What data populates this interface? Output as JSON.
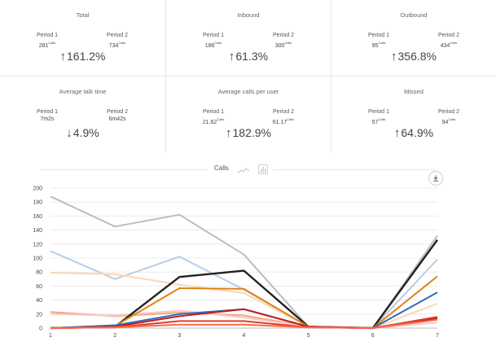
{
  "stats": [
    {
      "title": "Total",
      "p1_label": "Period 1",
      "p1_value": "281",
      "p1_unit": "Calls",
      "p2_label": "Period 2",
      "p2_value": "734",
      "p2_unit": "Calls",
      "change": "161.2%",
      "dir": "up"
    },
    {
      "title": "Inbound",
      "p1_label": "Period 1",
      "p1_value": "186",
      "p1_unit": "Calls",
      "p2_label": "Period 2",
      "p2_value": "300",
      "p2_unit": "Calls",
      "change": "61.3%",
      "dir": "up"
    },
    {
      "title": "Outbound",
      "p1_label": "Period 1",
      "p1_value": "95",
      "p1_unit": "Calls",
      "p2_label": "Period 2",
      "p2_value": "434",
      "p2_unit": "Calls",
      "change": "356.8%",
      "dir": "up"
    },
    {
      "title": "Average talk time",
      "p1_label": "Period 1",
      "p1_value": "7m2s",
      "p1_unit": "",
      "p2_label": "Period 2",
      "p2_value": "6m42s",
      "p2_unit": "",
      "change": "4.9%",
      "dir": "down"
    },
    {
      "title": "Average calls per user",
      "p1_label": "Period 1",
      "p1_value": "21.62",
      "p1_unit": "Calls",
      "p2_label": "Period 2",
      "p2_value": "61.17",
      "p2_unit": "Calls",
      "change": "182.9%",
      "dir": "up"
    },
    {
      "title": "Missed",
      "p1_label": "Period 1",
      "p1_value": "57",
      "p1_unit": "Calls",
      "p2_label": "Period 2",
      "p2_value": "94",
      "p2_unit": "Calls",
      "change": "64.9%",
      "dir": "up"
    }
  ],
  "chart_header": {
    "title": "Calls",
    "line_icon": "line-chart-icon",
    "bar_icon": "bar-chart-icon",
    "download_icon": "download-icon"
  },
  "chart_data": {
    "type": "line",
    "x": [
      1,
      2,
      3,
      4,
      5,
      6,
      7
    ],
    "ylim": [
      0,
      200
    ],
    "yticks": [
      0,
      20,
      40,
      60,
      80,
      100,
      120,
      140,
      160,
      180,
      200
    ],
    "grid": true,
    "series": [
      {
        "color": "#bdbdbd",
        "values": [
          188,
          145,
          162,
          105,
          2,
          0,
          132
        ]
      },
      {
        "color": "#b7cde8",
        "values": [
          110,
          70,
          102,
          55,
          2,
          0,
          98
        ]
      },
      {
        "color": "#fcd6b0",
        "values": [
          79,
          77,
          62,
          50,
          2,
          0,
          35
        ]
      },
      {
        "color": "#f4a582",
        "values": [
          23,
          17,
          22,
          18,
          2,
          0,
          12
        ]
      },
      {
        "color": "#f6c9c9",
        "values": [
          20,
          18,
          25,
          15,
          2,
          0,
          8
        ]
      },
      {
        "color": "#222222",
        "values": [
          0,
          2,
          73,
          82,
          2,
          0,
          126
        ]
      },
      {
        "color": "#e08214",
        "values": [
          0,
          3,
          57,
          56,
          2,
          0,
          74
        ]
      },
      {
        "color": "#2d6bbf",
        "values": [
          0,
          4,
          20,
          27,
          2,
          0,
          51
        ]
      },
      {
        "color": "#c51b1b",
        "values": [
          0,
          2,
          17,
          27,
          2,
          0,
          14
        ]
      },
      {
        "color": "#e03c2c",
        "values": [
          0,
          1,
          10,
          10,
          1,
          0,
          16
        ]
      },
      {
        "color": "#fb6a4a",
        "values": [
          0,
          1,
          5,
          5,
          1,
          0,
          12
        ]
      }
    ]
  }
}
